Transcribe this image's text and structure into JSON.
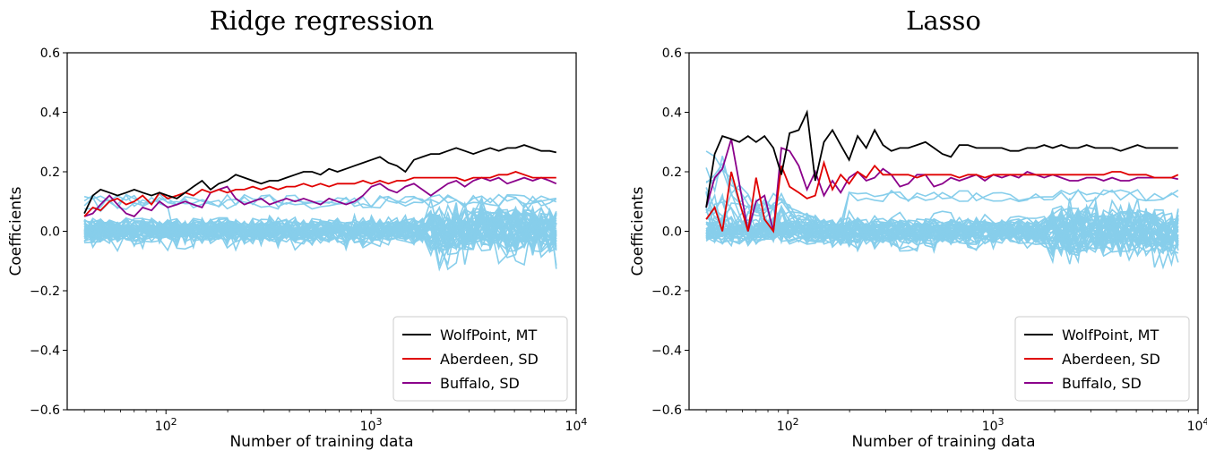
{
  "chart_data": [
    {
      "type": "line",
      "title": "Ridge regression",
      "xlabel": "Number of training data",
      "ylabel": "Coefficients",
      "xscale": "log",
      "xlim": [
        33,
        10000
      ],
      "ylim": [
        -0.6,
        0.6
      ],
      "yticks": [
        -0.6,
        -0.4,
        -0.2,
        0.0,
        0.2,
        0.4,
        0.6
      ],
      "ytick_labels": [
        "−0.6",
        "−0.4",
        "−0.2",
        "0.0",
        "0.2",
        "0.4",
        "0.6"
      ],
      "xticks": [
        100,
        1000,
        10000
      ],
      "xtick_labels": [
        {
          "base": "10",
          "exp": "2"
        },
        {
          "base": "10",
          "exp": "3"
        },
        {
          "base": "10",
          "exp": "4"
        }
      ],
      "legend_position": "lower-right",
      "x": [
        40,
        44,
        48,
        53,
        58,
        64,
        70,
        77,
        85,
        93,
        102,
        113,
        124,
        136,
        150,
        165,
        181,
        199,
        219,
        241,
        265,
        291,
        320,
        352,
        387,
        426,
        469,
        516,
        567,
        624,
        686,
        755,
        830,
        913,
        1004,
        1105,
        1215,
        1336,
        1470,
        1617,
        1778,
        1956,
        2152,
        2367,
        2603,
        2864,
        3150,
        3465,
        3811,
        4193,
        4612,
        5073,
        5580,
        6138,
        6752,
        7428,
        8000
      ],
      "series": [
        {
          "name": "WolfPoint, MT",
          "color": "#000000",
          "values": [
            0.06,
            0.12,
            0.14,
            0.13,
            0.12,
            0.13,
            0.14,
            0.13,
            0.12,
            0.13,
            0.12,
            0.11,
            0.13,
            0.15,
            0.17,
            0.14,
            0.16,
            0.17,
            0.19,
            0.18,
            0.17,
            0.16,
            0.17,
            0.17,
            0.18,
            0.19,
            0.2,
            0.2,
            0.19,
            0.21,
            0.2,
            0.21,
            0.22,
            0.23,
            0.24,
            0.25,
            0.23,
            0.22,
            0.2,
            0.24,
            0.25,
            0.26,
            0.26,
            0.27,
            0.28,
            0.27,
            0.26,
            0.27,
            0.28,
            0.27,
            0.28,
            0.28,
            0.29,
            0.28,
            0.27,
            0.27,
            0.265
          ]
        },
        {
          "name": "Aberdeen, SD",
          "color": "#e00000",
          "values": [
            0.05,
            0.08,
            0.07,
            0.1,
            0.11,
            0.09,
            0.1,
            0.12,
            0.09,
            0.13,
            0.11,
            0.12,
            0.13,
            0.12,
            0.14,
            0.13,
            0.14,
            0.13,
            0.14,
            0.14,
            0.15,
            0.14,
            0.15,
            0.14,
            0.15,
            0.15,
            0.16,
            0.15,
            0.16,
            0.15,
            0.16,
            0.16,
            0.16,
            0.17,
            0.16,
            0.17,
            0.16,
            0.17,
            0.17,
            0.18,
            0.18,
            0.18,
            0.18,
            0.18,
            0.18,
            0.17,
            0.18,
            0.18,
            0.18,
            0.19,
            0.19,
            0.2,
            0.19,
            0.18,
            0.18,
            0.18,
            0.18
          ]
        },
        {
          "name": "Buffalo, SD",
          "color": "#8b008b",
          "values": [
            0.05,
            0.06,
            0.09,
            0.12,
            0.09,
            0.06,
            0.05,
            0.08,
            0.07,
            0.1,
            0.08,
            0.09,
            0.1,
            0.09,
            0.08,
            0.13,
            0.14,
            0.15,
            0.11,
            0.09,
            0.1,
            0.11,
            0.09,
            0.1,
            0.11,
            0.1,
            0.11,
            0.1,
            0.09,
            0.11,
            0.1,
            0.09,
            0.1,
            0.12,
            0.15,
            0.16,
            0.14,
            0.13,
            0.15,
            0.16,
            0.14,
            0.12,
            0.14,
            0.16,
            0.17,
            0.15,
            0.17,
            0.18,
            0.17,
            0.18,
            0.16,
            0.17,
            0.18,
            0.17,
            0.18,
            0.17,
            0.16
          ]
        }
      ],
      "background_series": {
        "color": "#87ceeb",
        "count": 46,
        "center": 0.0,
        "spread": 0.03,
        "upper_values": [
          0.1,
          0.12,
          0.11,
          0.12,
          0.1,
          0.12,
          0.11,
          0.12,
          0.13,
          0.12,
          0.11
        ]
      }
    },
    {
      "type": "line",
      "title": "Lasso",
      "xlabel": "Number of training data",
      "ylabel": "Coefficients",
      "xscale": "log",
      "xlim": [
        33,
        10000
      ],
      "ylim": [
        -0.6,
        0.6
      ],
      "yticks": [
        -0.6,
        -0.4,
        -0.2,
        0.0,
        0.2,
        0.4,
        0.6
      ],
      "ytick_labels": [
        "−0.6",
        "−0.4",
        "−0.2",
        "0.0",
        "0.2",
        "0.4",
        "0.6"
      ],
      "xticks": [
        100,
        1000,
        10000
      ],
      "xtick_labels": [
        {
          "base": "10",
          "exp": "2"
        },
        {
          "base": "10",
          "exp": "3"
        },
        {
          "base": "10",
          "exp": "4"
        }
      ],
      "legend_position": "lower-right",
      "x": [
        40,
        44,
        48,
        53,
        58,
        64,
        70,
        77,
        85,
        93,
        102,
        113,
        124,
        136,
        150,
        165,
        181,
        199,
        219,
        241,
        265,
        291,
        320,
        352,
        387,
        426,
        469,
        516,
        567,
        624,
        686,
        755,
        830,
        913,
        1004,
        1105,
        1215,
        1336,
        1470,
        1617,
        1778,
        1956,
        2152,
        2367,
        2603,
        2864,
        3150,
        3465,
        3811,
        4193,
        4612,
        5073,
        5580,
        6138,
        6752,
        7428,
        8000
      ],
      "series": [
        {
          "name": "WolfPoint, MT",
          "color": "#000000",
          "values": [
            0.08,
            0.26,
            0.32,
            0.31,
            0.3,
            0.32,
            0.3,
            0.32,
            0.28,
            0.19,
            0.33,
            0.34,
            0.4,
            0.17,
            0.3,
            0.34,
            0.29,
            0.24,
            0.32,
            0.28,
            0.34,
            0.29,
            0.27,
            0.28,
            0.28,
            0.29,
            0.3,
            0.28,
            0.26,
            0.25,
            0.29,
            0.29,
            0.28,
            0.28,
            0.28,
            0.28,
            0.27,
            0.27,
            0.28,
            0.28,
            0.29,
            0.28,
            0.29,
            0.28,
            0.28,
            0.29,
            0.28,
            0.28,
            0.28,
            0.27,
            0.28,
            0.29,
            0.28,
            0.28,
            0.28,
            0.28,
            0.28
          ]
        },
        {
          "name": "Aberdeen, SD",
          "color": "#e00000",
          "values": [
            0.04,
            0.08,
            0.0,
            0.2,
            0.1,
            0.0,
            0.18,
            0.04,
            0.0,
            0.22,
            0.15,
            0.13,
            0.11,
            0.12,
            0.23,
            0.14,
            0.19,
            0.16,
            0.2,
            0.18,
            0.22,
            0.19,
            0.19,
            0.19,
            0.19,
            0.18,
            0.19,
            0.19,
            0.19,
            0.19,
            0.18,
            0.19,
            0.19,
            0.18,
            0.19,
            0.19,
            0.19,
            0.19,
            0.19,
            0.19,
            0.19,
            0.19,
            0.19,
            0.19,
            0.19,
            0.19,
            0.19,
            0.19,
            0.2,
            0.2,
            0.19,
            0.19,
            0.19,
            0.18,
            0.18,
            0.18,
            0.19
          ]
        },
        {
          "name": "Buffalo, SD",
          "color": "#8b008b",
          "values": [
            0.08,
            0.18,
            0.21,
            0.31,
            0.16,
            0.0,
            0.1,
            0.12,
            0.0,
            0.28,
            0.27,
            0.22,
            0.14,
            0.2,
            0.12,
            0.17,
            0.13,
            0.18,
            0.2,
            0.17,
            0.18,
            0.21,
            0.19,
            0.15,
            0.16,
            0.19,
            0.19,
            0.15,
            0.16,
            0.18,
            0.17,
            0.18,
            0.19,
            0.17,
            0.19,
            0.18,
            0.19,
            0.18,
            0.2,
            0.19,
            0.18,
            0.19,
            0.18,
            0.17,
            0.17,
            0.18,
            0.18,
            0.17,
            0.18,
            0.17,
            0.17,
            0.18,
            0.18,
            0.18,
            0.18,
            0.18,
            0.175
          ]
        }
      ],
      "background_series": {
        "color": "#87ceeb",
        "count": 46,
        "center": 0.0,
        "spread": 0.03,
        "upper_values": [
          0.3,
          0.26,
          0.27,
          0.2,
          0.15,
          0.13,
          0.12,
          0.1,
          0.12,
          0.13,
          0.11
        ]
      }
    }
  ]
}
